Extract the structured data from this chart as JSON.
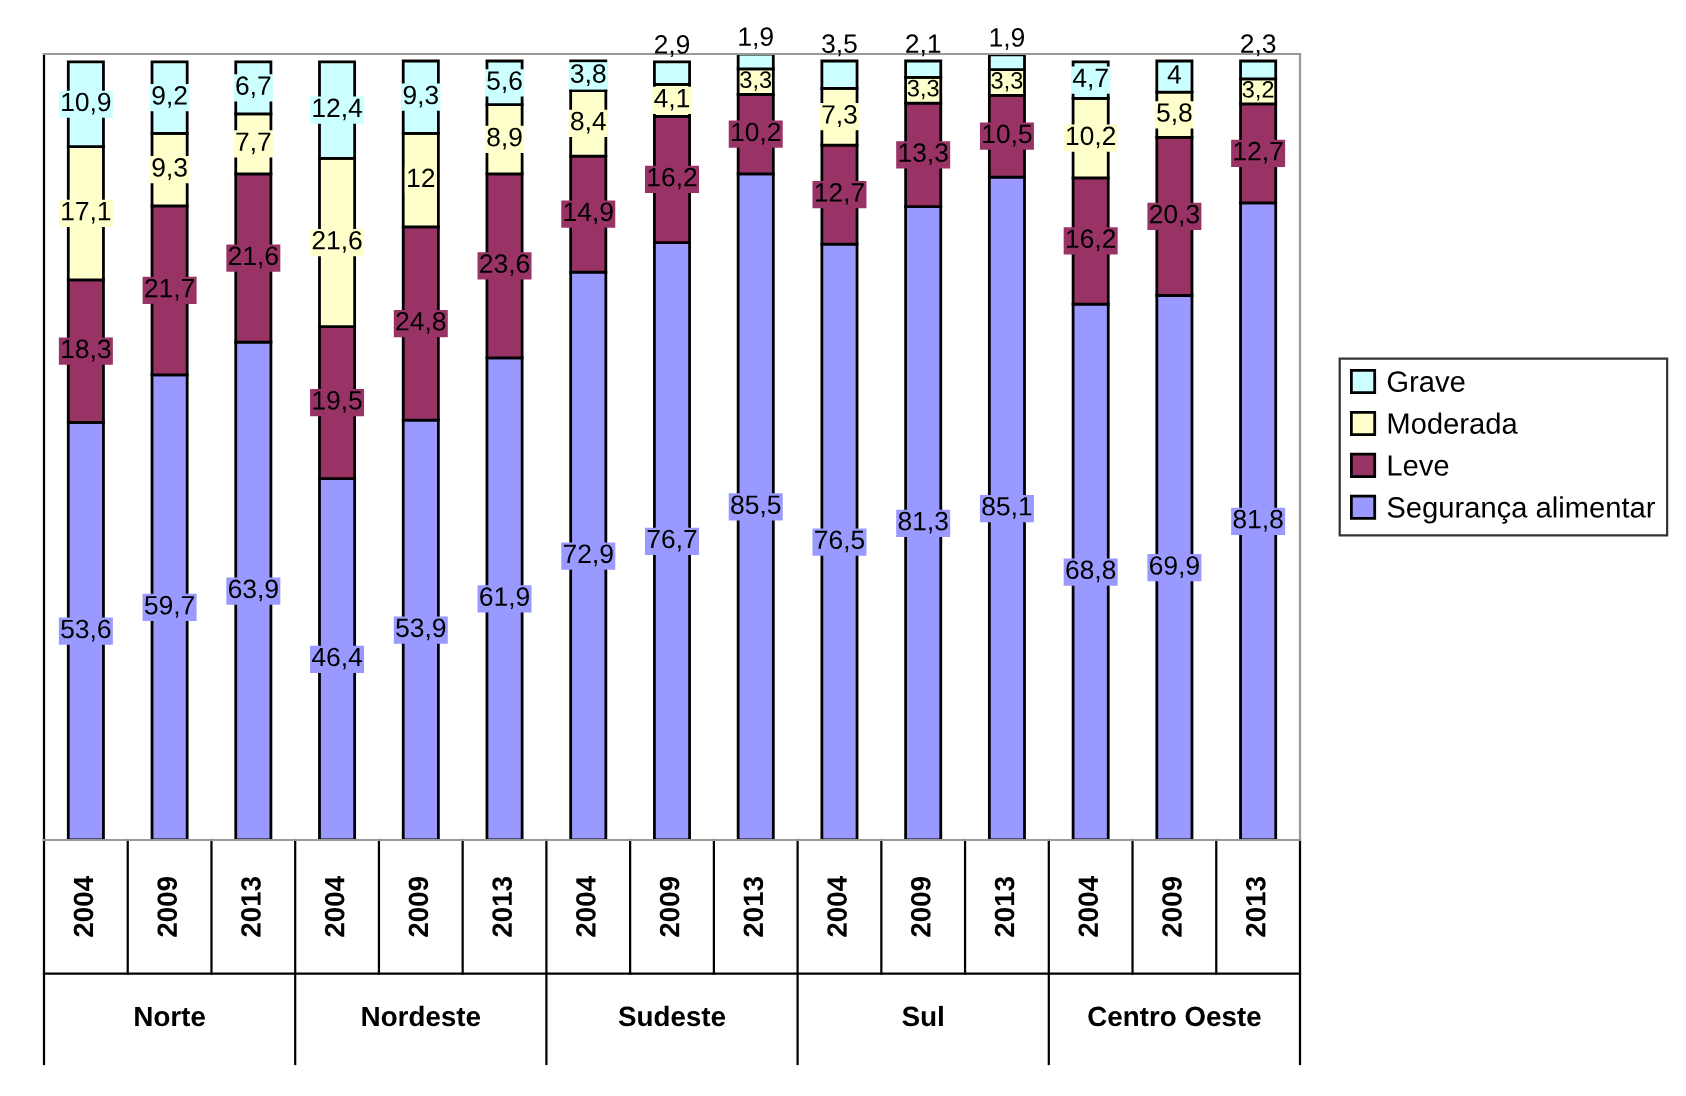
{
  "chart_data": {
    "type": "bar",
    "stacked": true,
    "data_labels": true,
    "legend": "right",
    "categories": [
      "2004",
      "2009",
      "2013",
      "2004",
      "2009",
      "2013",
      "2004",
      "2009",
      "2013",
      "2004",
      "2009",
      "2013",
      "2004",
      "2009",
      "2013"
    ],
    "annotations": [
      "Norte",
      "Nordeste",
      "Sudeste",
      "Sul",
      "Centro Oeste"
    ],
    "series": [
      {
        "name": "Segurança alimentar",
        "color": "#9999ff",
        "values": [
          53.6,
          59.7,
          63.9,
          46.4,
          53.9,
          61.9,
          72.9,
          76.7,
          85.5,
          76.5,
          81.3,
          85.1,
          68.8,
          69.9,
          81.8
        ],
        "value_labels": [
          "53,6",
          "59,7",
          "63,9",
          "46,4",
          "53,9",
          "61,9",
          "72,9",
          "76,7",
          "85,5",
          "76,5",
          "81,3",
          "85,1",
          "68,8",
          "69,9",
          "81,8"
        ]
      },
      {
        "name": "Leve",
        "color": "#993366",
        "values": [
          18.3,
          21.7,
          21.6,
          19.5,
          24.8,
          23.6,
          14.9,
          16.2,
          10.2,
          12.7,
          13.3,
          10.5,
          16.2,
          20.3,
          12.7
        ],
        "value_labels": [
          "18,3",
          "21,7",
          "21,6",
          "19,5",
          "24,8",
          "23,6",
          "14,9",
          "16,2",
          "10,2",
          "12,7",
          "13,3",
          "10,5",
          "16,2",
          "20,3",
          "12,7"
        ]
      },
      {
        "name": "Moderada",
        "color": "#ffffcc",
        "values": [
          17.1,
          9.3,
          7.7,
          21.6,
          12,
          8.9,
          8.4,
          4.1,
          3.3,
          7.3,
          3.3,
          3.3,
          10.2,
          5.8,
          3.2
        ],
        "value_labels": [
          "17,1",
          "9,3",
          "7,7",
          "21,6",
          "12",
          "8,9",
          "8,4",
          "4,1",
          "3,3",
          "7,3",
          "3,3",
          "3,3",
          "10,2",
          "5,8",
          "3,2"
        ]
      },
      {
        "name": "Grave",
        "color": "#ccffff",
        "values": [
          10.9,
          9.2,
          6.7,
          12.4,
          9.3,
          5.6,
          3.8,
          2.9,
          1.9,
          3.5,
          2.1,
          1.9,
          4.7,
          4,
          2.3
        ],
        "value_labels": [
          "10,9",
          "9,2",
          "6,7",
          "12,4",
          "9,3",
          "5,6",
          "3,8",
          "2,9",
          "1,9",
          "3,5",
          "2,1",
          "1,9",
          "4,7",
          "4",
          "2,3"
        ]
      }
    ]
  }
}
